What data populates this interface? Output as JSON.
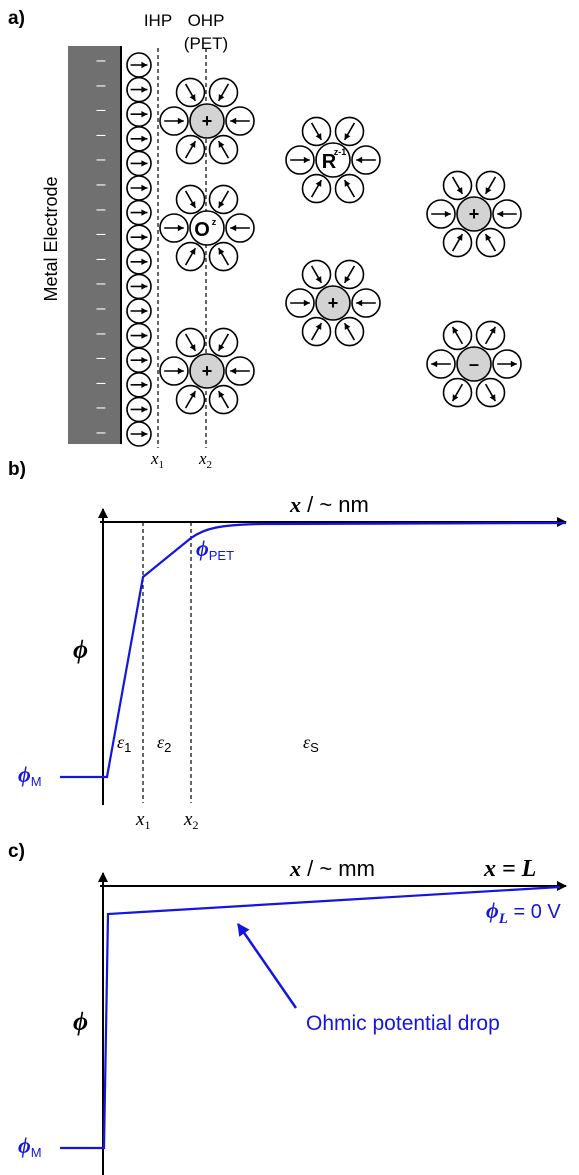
{
  "panel_a": {
    "label": "a)",
    "electrode_label": "Metal Electrode",
    "ihp_label": "IHP",
    "ohp_label": "OHP",
    "ohp_sublabel": "(PET)",
    "x1_label": "x",
    "x1_sub": "1",
    "x2_label": "x",
    "x2_sub": "2",
    "electrode_charge_sign": "–",
    "ion_center_plus": "+",
    "ion_center_minus": "–",
    "ion_o_letter": "O",
    "ion_o_charge": "z",
    "ion_r_letter": "R",
    "ion_r_charge": "z-1"
  },
  "panel_b": {
    "label": "b)",
    "axis_label_var": "x",
    "axis_label_unit": " / ~ nm",
    "phi": "ϕ",
    "phi_pet_sub": "PET",
    "phi_m_sub": "M",
    "eps1": "ε",
    "eps1_sub": "1",
    "eps2": "ε",
    "eps2_sub": "2",
    "epsS": "ε",
    "epsS_sub": "S",
    "x1_label": "x",
    "x1_sub": "1",
    "x2_label": "x",
    "x2_sub": "2"
  },
  "panel_c": {
    "label": "c)",
    "axis_label_var": "x",
    "axis_label_unit": " / ~ mm",
    "x_eq_l": "x = L",
    "phi": "ϕ",
    "phi_l_sub": "L",
    "phi_l_value": " = 0 V",
    "phi_m_sub": "M",
    "ohmic_label": "Ohmic potential drop"
  },
  "colors": {
    "accent": "#1515e0",
    "electrode": "#707070",
    "ion_fill": "#d3d3d3",
    "line": "#000000"
  }
}
